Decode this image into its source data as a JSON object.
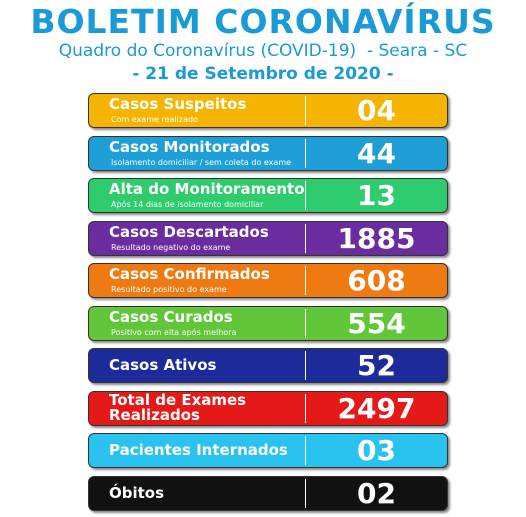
{
  "header": {
    "title": "BOLETIM CORONAVÍRUS",
    "subtitle": "Quadro do Coronavírus (COVID-19)  - Seara - SC",
    "date": "- 21 de Setembro de 2020 -"
  },
  "rows": [
    {
      "label": "Casos Suspeitos",
      "note": "Com exame realizado",
      "value": "04",
      "color": "#f4b400"
    },
    {
      "label": "Casos Monitorados",
      "note": "Isolamento domiciliar / sem coleta do exame",
      "value": "44",
      "color": "#1e9fd8"
    },
    {
      "label": "Alta do Monitoramento",
      "note": "Após 14 dias de isolamento domiciliar",
      "value": "13",
      "color": "#2ecc6c"
    },
    {
      "label": "Casos Descartados",
      "note": "Resultado negativo do exame",
      "value": "1885",
      "color": "#6a2c9e"
    },
    {
      "label": "Casos Confirmados",
      "note": "Resultado positivo do exame",
      "value": "608",
      "color": "#ef7a12"
    },
    {
      "label": "Casos Curados",
      "note": "Positivo com alta após melhora",
      "value": "554",
      "color": "#62c63a"
    },
    {
      "label": "Casos Ativos",
      "value": "52",
      "color": "#1c2a9a"
    },
    {
      "label": "Total de Exames\nRealizados",
      "value": "2497",
      "color": "#e61919"
    },
    {
      "label": "Pacientes Internados",
      "value": "03",
      "color": "#2ac2ee"
    },
    {
      "label": "Óbitos",
      "value": "02",
      "color": "#111111"
    }
  ]
}
